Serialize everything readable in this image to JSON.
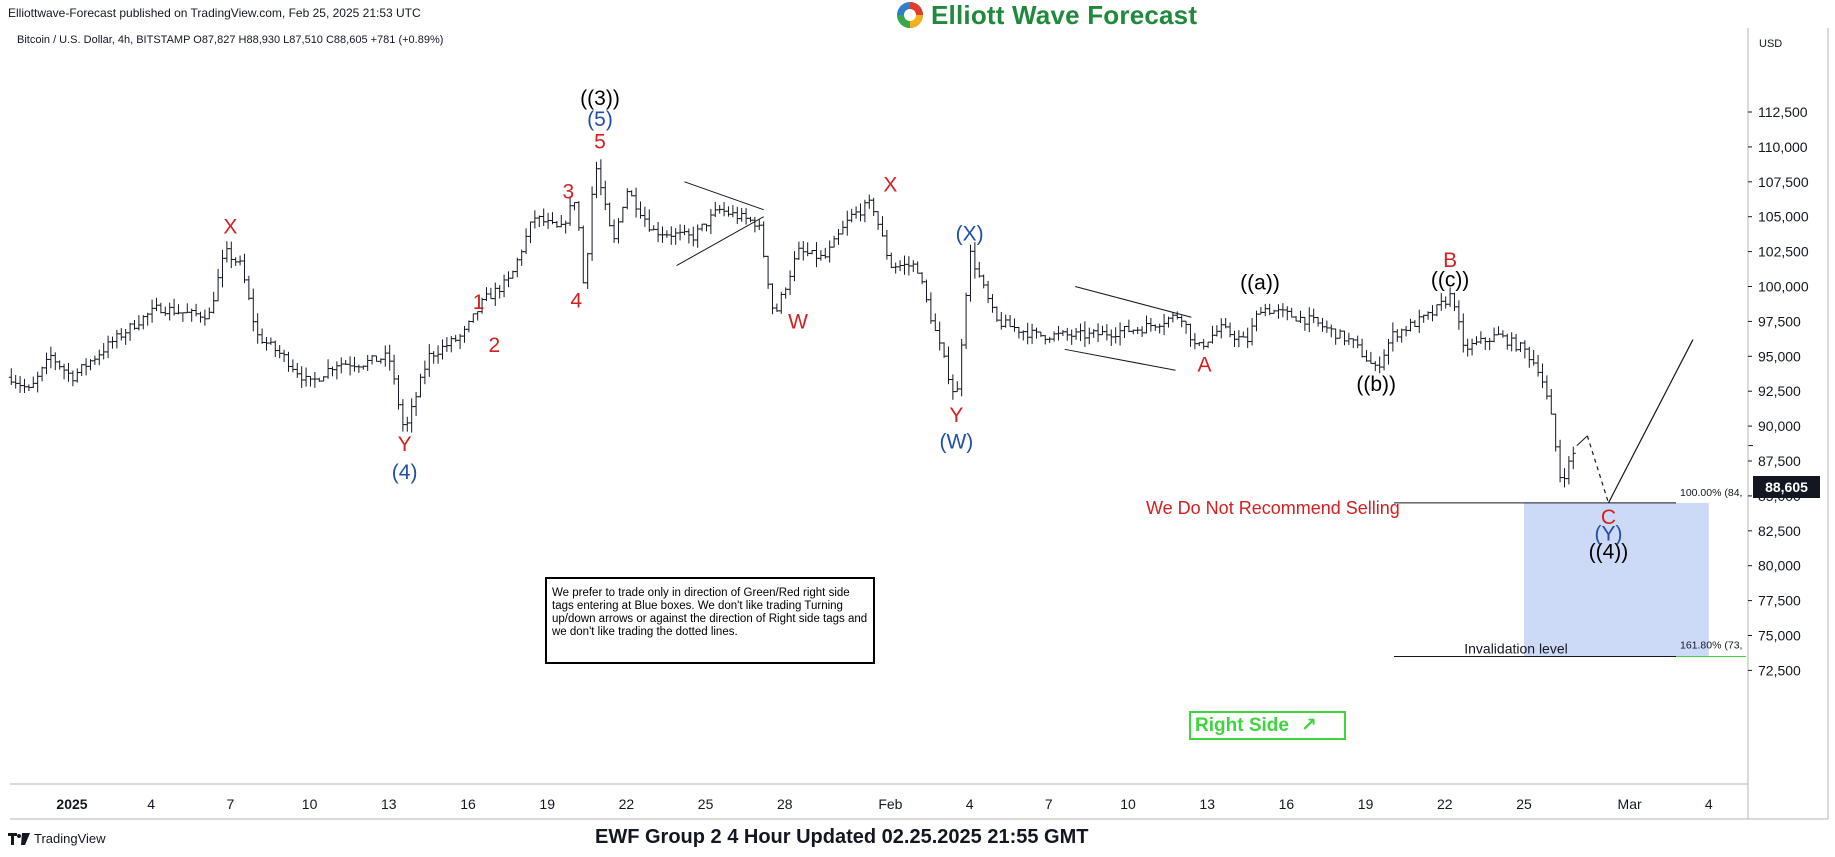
{
  "header": {
    "publisher": "Elliottwave-Forecast published on TradingView.com, Feb 25, 2025 21:53 UTC",
    "logo_text": "Elliott Wave Forecast",
    "symbol_line": "Bitcoin / U.S. Dollar, 4h, BITSTAMP  O87,827  H88,930  L87,510  C88,605  +781 (+0.89%)",
    "currency": "USD"
  },
  "footer": {
    "tradingview": "TradingView",
    "title": "EWF Group 2 4 Hour Updated 02.25.2025 21:55 GMT"
  },
  "note_text": "We prefer to trade only in direction of Green/Red right side tags entering at Blue boxes. We don't like trading Turning up/down arrows or against the direction of Right side tags and we don't like trading the dotted lines.",
  "no_sell_text": "We Do Not Recommend Selling",
  "right_side": {
    "label": "Right Side",
    "arrow": "↗"
  },
  "price_badge": "88,605",
  "fib_labels": {
    "top": "100.00% (84,",
    "bottom": "161.80% (73,",
    "invalidation": "Invalidation level"
  },
  "colors": {
    "red": "#d32020",
    "blue": "#1f4fa8",
    "black": "#000000",
    "box": "#ccdaf8",
    "green": "#3dd63d"
  },
  "chart_data": {
    "type": "candlestick",
    "title": "Bitcoin / U.S. Dollar, 4h, BITSTAMP",
    "ylabel": "USD",
    "ylim": [
      71000,
      113500
    ],
    "y_ticks": [
      "112,500",
      "110,000",
      "107,500",
      "105,000",
      "102,500",
      "100,000",
      "97,500",
      "95,000",
      "92,500",
      "90,000",
      "87,500",
      "85,000",
      "82,500",
      "80,000",
      "77,500",
      "75,000",
      "72,500"
    ],
    "y_tick_values": [
      112500,
      110000,
      107500,
      105000,
      102500,
      100000,
      97500,
      95000,
      92500,
      90000,
      87500,
      85000,
      82500,
      80000,
      77500,
      75000,
      72500
    ],
    "x_range_days": [
      0,
      63
    ],
    "x_ticks": [
      {
        "day": 0,
        "label": "2025"
      },
      {
        "day": 3,
        "label": "4"
      },
      {
        "day": 6,
        "label": "7"
      },
      {
        "day": 9,
        "label": "10"
      },
      {
        "day": 12,
        "label": "13"
      },
      {
        "day": 15,
        "label": "16"
      },
      {
        "day": 18,
        "label": "19"
      },
      {
        "day": 21,
        "label": "22"
      },
      {
        "day": 24,
        "label": "25"
      },
      {
        "day": 27,
        "label": "28"
      },
      {
        "day": 31,
        "label": "Feb"
      },
      {
        "day": 34,
        "label": "4"
      },
      {
        "day": 37,
        "label": "7"
      },
      {
        "day": 40,
        "label": "10"
      },
      {
        "day": 43,
        "label": "13"
      },
      {
        "day": 46,
        "label": "16"
      },
      {
        "day": 49,
        "label": "19"
      },
      {
        "day": 52,
        "label": "22"
      },
      {
        "day": 55,
        "label": "25"
      },
      {
        "day": 59,
        "label": "Mar"
      },
      {
        "day": 62,
        "label": "4"
      }
    ],
    "price_path": [
      [
        -2.3,
        93500
      ],
      [
        -1.6,
        92500
      ],
      [
        -0.8,
        95000
      ],
      [
        0,
        93500
      ],
      [
        1.5,
        96000
      ],
      [
        2.5,
        97500
      ],
      [
        3.3,
        98500
      ],
      [
        4.5,
        98000
      ],
      [
        5.2,
        98000
      ],
      [
        5.8,
        102500
      ],
      [
        6.4,
        101500
      ],
      [
        7.0,
        96500
      ],
      [
        8.0,
        95000
      ],
      [
        9.0,
        93000
      ],
      [
        10.0,
        94500
      ],
      [
        11.0,
        94500
      ],
      [
        12.0,
        95000
      ],
      [
        12.6,
        89500
      ],
      [
        13.5,
        95000
      ],
      [
        14.8,
        96500
      ],
      [
        15.6,
        99000
      ],
      [
        16.6,
        100500
      ],
      [
        17.5,
        105000
      ],
      [
        18.5,
        104000
      ],
      [
        19.1,
        106500
      ],
      [
        19.4,
        99500
      ],
      [
        19.8,
        109000
      ],
      [
        20.5,
        103000
      ],
      [
        21.0,
        107000
      ],
      [
        22.0,
        104000
      ],
      [
        23.5,
        103500
      ],
      [
        24.5,
        105500
      ],
      [
        26.0,
        104500
      ],
      [
        26.6,
        97800
      ],
      [
        27.5,
        102500
      ],
      [
        28.5,
        102000
      ],
      [
        29.5,
        105000
      ],
      [
        30.3,
        106000
      ],
      [
        31.0,
        101500
      ],
      [
        32.0,
        101500
      ],
      [
        32.5,
        98000
      ],
      [
        33.5,
        91800
      ],
      [
        34.0,
        102500
      ],
      [
        35.0,
        97500
      ],
      [
        36.5,
        96500
      ],
      [
        38.5,
        96500
      ],
      [
        40.5,
        97000
      ],
      [
        42.0,
        98000
      ],
      [
        42.6,
        95500
      ],
      [
        43.5,
        97000
      ],
      [
        44.5,
        96000
      ],
      [
        45.0,
        98500
      ],
      [
        47.0,
        97500
      ],
      [
        48.5,
        96000
      ],
      [
        49.4,
        94000
      ],
      [
        50.0,
        96500
      ],
      [
        51.5,
        98000
      ],
      [
        52.3,
        99500
      ],
      [
        52.7,
        95500
      ],
      [
        54.0,
        96500
      ],
      [
        55.0,
        95500
      ],
      [
        55.6,
        94000
      ],
      [
        56.0,
        91000
      ],
      [
        56.4,
        86000
      ],
      [
        57.0,
        88605
      ]
    ],
    "projection": [
      [
        57.0,
        88605
      ],
      [
        57.4,
        89300
      ],
      [
        58.2,
        84500
      ],
      [
        61.4,
        96200
      ]
    ],
    "fib_box": {
      "x_from": 55.0,
      "x_to": 62.0,
      "top": 84500,
      "bottom": 73500
    },
    "triangles": [
      {
        "lines": [
          [
            23.2,
            107500,
            26.2,
            105500
          ],
          [
            22.9,
            101500,
            26.2,
            105000
          ]
        ]
      },
      {
        "lines": [
          [
            38.0,
            100000,
            42.4,
            97800
          ],
          [
            37.6,
            95500,
            41.8,
            94000
          ]
        ]
      }
    ],
    "wave_labels": [
      {
        "text": "X",
        "day": 6.0,
        "price": 103800,
        "color": "red"
      },
      {
        "text": "Y",
        "day": 12.6,
        "price": 88200,
        "color": "red"
      },
      {
        "text": "(4)",
        "day": 12.6,
        "price": 86200,
        "color": "blue"
      },
      {
        "text": "1",
        "day": 15.4,
        "price": 98400,
        "color": "red"
      },
      {
        "text": "2",
        "day": 16.0,
        "price": 95300,
        "color": "red"
      },
      {
        "text": "3",
        "day": 18.8,
        "price": 106300,
        "color": "red"
      },
      {
        "text": "4",
        "day": 19.1,
        "price": 98500,
        "color": "red"
      },
      {
        "text": "5",
        "day": 20.0,
        "price": 109900,
        "color": "red"
      },
      {
        "text": "(5)",
        "day": 20.0,
        "price": 111500,
        "color": "blue"
      },
      {
        "text": "((3))",
        "day": 20.0,
        "price": 113000,
        "color": "black"
      },
      {
        "text": "W",
        "day": 27.5,
        "price": 97000,
        "color": "red"
      },
      {
        "text": "X",
        "day": 31.0,
        "price": 106800,
        "color": "red"
      },
      {
        "text": "(X)",
        "day": 34.0,
        "price": 103300,
        "color": "blue"
      },
      {
        "text": "Y",
        "day": 33.5,
        "price": 90300,
        "color": "red"
      },
      {
        "text": "(W)",
        "day": 33.5,
        "price": 88400,
        "color": "blue"
      },
      {
        "text": "A",
        "day": 42.9,
        "price": 93900,
        "color": "red"
      },
      {
        "text": "((a))",
        "day": 45.0,
        "price": 99800,
        "color": "black"
      },
      {
        "text": "((b))",
        "day": 49.4,
        "price": 92500,
        "color": "black"
      },
      {
        "text": "B",
        "day": 52.2,
        "price": 101400,
        "color": "red"
      },
      {
        "text": "((c))",
        "day": 52.2,
        "price": 100000,
        "color": "black"
      },
      {
        "text": "C",
        "day": 58.2,
        "price": 83000,
        "color": "red"
      },
      {
        "text": "(Y)",
        "day": 58.2,
        "price": 81800,
        "color": "blue"
      },
      {
        "text": "((4))",
        "day": 58.2,
        "price": 80500,
        "color": "black"
      }
    ]
  }
}
